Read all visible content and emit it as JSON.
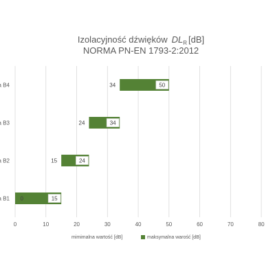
{
  "chart_data": {
    "type": "bar",
    "orientation": "horizontal",
    "stacked": true,
    "title_line1_text": "Izolacyjność dźwięków",
    "title_line1_symbol": "DL",
    "title_line1_subscript": "R",
    "title_line1_unit": "[dB]",
    "title_line2": "NORMA PN-EN 1793-2:2012",
    "categories": [
      "a B1",
      "a B2",
      "a B3",
      "a B4"
    ],
    "series": [
      {
        "name": "mimimalna wartość [dB]",
        "values": [
          0,
          15,
          24,
          34
        ],
        "color": "#ffffff",
        "visible": false
      },
      {
        "name": "maksymalna warość [dB]",
        "values": [
          15,
          24,
          34,
          50
        ],
        "color": "#548235"
      }
    ],
    "data_labels_min": [
      "0",
      "15",
      "24",
      "34"
    ],
    "data_labels_max": [
      "15",
      "24",
      "34",
      "50"
    ],
    "xticks": [
      "0",
      "10",
      "20",
      "30",
      "40",
      "50",
      "60",
      "70",
      "80"
    ],
    "xlim": [
      0,
      84
    ],
    "grid": true,
    "legend_position": "bottom"
  }
}
